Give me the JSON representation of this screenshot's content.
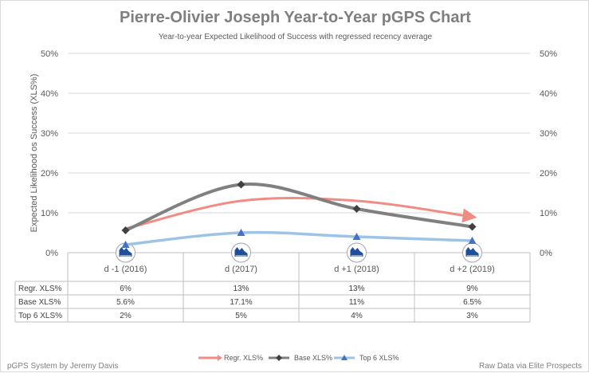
{
  "title": "Pierre-Olivier Joseph Year-to-Year pGPS Chart",
  "subtitle": "Year-to-year Expected Likelihood of Success with regressed recency average",
  "footer_left": "pGPS System by Jeremy Davis",
  "footer_right": "Raw Data via Elite Prospects",
  "colors": {
    "regr": "#f08c84",
    "base": "#808080",
    "top6": "#9dc3e6",
    "base_marker": "#404040",
    "top6_marker": "#4472c4"
  },
  "chart_data": {
    "type": "line",
    "title": "Pierre-Olivier Joseph Year-to-Year pGPS Chart",
    "subtitle": "Year-to-year Expected Likelihood of Success with regressed recency average",
    "ylabel": "Expected Likelihood os Success (XLS%)",
    "ylim": [
      0,
      50
    ],
    "yticks": [
      "0%",
      "10%",
      "20%",
      "30%",
      "40%",
      "50%"
    ],
    "categories": [
      "d -1 (2016)",
      "d (2017)",
      "d +1 (2018)",
      "d +2 (2019)"
    ],
    "series": [
      {
        "name": "Regr. XLS%",
        "values": [
          6,
          13,
          13,
          9
        ],
        "labels": [
          "6%",
          "13%",
          "13%",
          "9%"
        ]
      },
      {
        "name": "Base XLS%",
        "values": [
          5.6,
          17.1,
          11,
          6.5
        ],
        "labels": [
          "5.6%",
          "17.1%",
          "11%",
          "6.5%"
        ]
      },
      {
        "name": "Top 6 XLS%",
        "values": [
          2,
          5,
          4,
          3
        ],
        "labels": [
          "2%",
          "5%",
          "4%",
          "3%"
        ]
      }
    ],
    "legend_position": "bottom",
    "grid": true
  }
}
